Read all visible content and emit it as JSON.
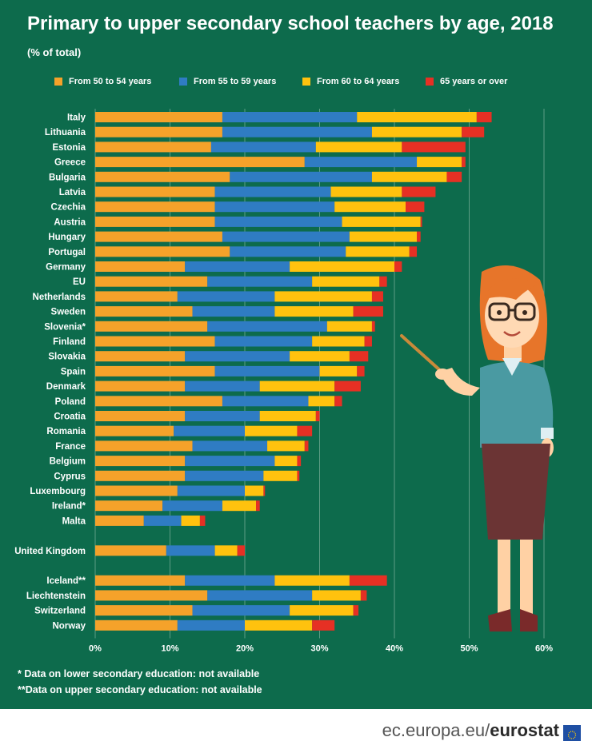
{
  "title": "Primary to upper secondary school teachers by age, 2018",
  "subtitle": "(% of total)",
  "footnotes": [
    "* Data on lower secondary education: not available",
    "**Data on upper secondary education: not available"
  ],
  "brand": {
    "site": "ec.europa.eu/",
    "name": "eurostat"
  },
  "colors": {
    "background": "#0d6b4c",
    "grid": "#5d9c84"
  },
  "chart_data": {
    "type": "bar",
    "orientation": "horizontal",
    "stacked": true,
    "xlim": [
      0,
      60
    ],
    "xticks": [
      "0%",
      "10%",
      "20%",
      "30%",
      "40%",
      "50%",
      "60%"
    ],
    "grid": true,
    "legend_position": "top",
    "series": [
      {
        "name": "From 50 to 54 years",
        "color": "#f5a22a"
      },
      {
        "name": "From 55 to 59 years",
        "color": "#2f7cc3"
      },
      {
        "name": "From 60 to 64 years",
        "color": "#ffc20e"
      },
      {
        "name": "65 years or over",
        "color": "#e63024"
      }
    ],
    "groups": [
      {
        "rows": [
          {
            "label": "Italy",
            "values": [
              17.0,
              18.0,
              16.0,
              2.0
            ]
          },
          {
            "label": "Lithuania",
            "values": [
              17.0,
              20.0,
              12.0,
              3.0
            ]
          },
          {
            "label": "Estonia",
            "values": [
              15.5,
              14.0,
              11.5,
              8.5
            ]
          },
          {
            "label": "Greece",
            "values": [
              28.0,
              15.0,
              6.0,
              0.5
            ]
          },
          {
            "label": "Bulgaria",
            "values": [
              18.0,
              19.0,
              10.0,
              2.0
            ]
          },
          {
            "label": "Latvia",
            "values": [
              16.0,
              15.5,
              9.5,
              4.5
            ]
          },
          {
            "label": "Czechia",
            "values": [
              16.0,
              16.0,
              9.5,
              2.5
            ]
          },
          {
            "label": "Austria",
            "values": [
              16.0,
              17.0,
              10.5,
              0.2
            ]
          },
          {
            "label": "Hungary",
            "values": [
              17.0,
              17.0,
              9.0,
              0.5
            ]
          },
          {
            "label": "Portugal",
            "values": [
              18.0,
              15.5,
              8.5,
              1.0
            ]
          },
          {
            "label": "Germany",
            "values": [
              12.0,
              14.0,
              14.0,
              1.0
            ]
          },
          {
            "label": "EU",
            "values": [
              15.0,
              14.0,
              9.0,
              1.0
            ]
          },
          {
            "label": "Netherlands",
            "values": [
              11.0,
              13.0,
              13.0,
              1.5
            ]
          },
          {
            "label": "Sweden",
            "values": [
              13.0,
              11.0,
              10.5,
              4.0
            ]
          },
          {
            "label": "Slovenia*",
            "values": [
              15.0,
              16.0,
              6.0,
              0.4
            ]
          },
          {
            "label": "Finland",
            "values": [
              16.0,
              13.0,
              7.0,
              1.0
            ]
          },
          {
            "label": "Slovakia",
            "values": [
              12.0,
              14.0,
              8.0,
              2.5
            ]
          },
          {
            "label": "Spain",
            "values": [
              16.0,
              14.0,
              5.0,
              1.0
            ]
          },
          {
            "label": "Denmark",
            "values": [
              12.0,
              10.0,
              10.0,
              3.5
            ]
          },
          {
            "label": "Poland",
            "values": [
              17.0,
              11.5,
              3.5,
              1.0
            ]
          },
          {
            "label": "Croatia",
            "values": [
              12.0,
              10.0,
              7.5,
              0.5
            ]
          },
          {
            "label": "Romania",
            "values": [
              10.5,
              9.5,
              7.0,
              2.0
            ]
          },
          {
            "label": "France",
            "values": [
              13.0,
              10.0,
              5.0,
              0.5
            ]
          },
          {
            "label": "Belgium",
            "values": [
              12.0,
              12.0,
              3.0,
              0.5
            ]
          },
          {
            "label": "Cyprus",
            "values": [
              12.0,
              10.5,
              4.5,
              0.3
            ]
          },
          {
            "label": "Luxembourg",
            "values": [
              11.0,
              9.0,
              2.5,
              0.2
            ]
          },
          {
            "label": "Ireland*",
            "values": [
              9.0,
              8.0,
              4.5,
              0.5
            ]
          },
          {
            "label": "Malta",
            "values": [
              6.5,
              5.0,
              2.5,
              0.7
            ]
          }
        ]
      },
      {
        "rows": [
          {
            "label": "United Kingdom",
            "values": [
              9.5,
              6.5,
              3.0,
              1.0
            ]
          }
        ]
      },
      {
        "rows": [
          {
            "label": "Iceland**",
            "values": [
              12.0,
              12.0,
              10.0,
              5.0
            ]
          },
          {
            "label": "Liechtenstein",
            "values": [
              15.0,
              14.0,
              6.5,
              0.8
            ]
          },
          {
            "label": "Switzerland",
            "values": [
              13.0,
              13.0,
              8.5,
              0.7
            ]
          },
          {
            "label": "Norway",
            "values": [
              11.0,
              9.0,
              9.0,
              3.0
            ]
          }
        ]
      }
    ]
  }
}
